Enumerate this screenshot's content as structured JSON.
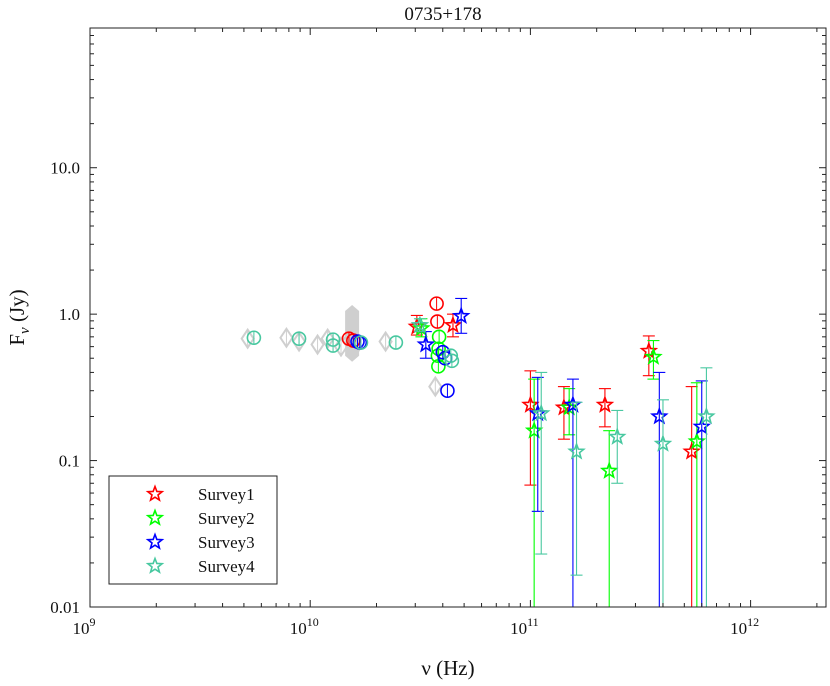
{
  "chart_data": {
    "type": "scatter",
    "title": "0735+178",
    "xlabel": "ν (Hz)",
    "ylabel": "F_ν (Jy)",
    "ylabel_main": "F",
    "ylabel_sub": "ν",
    "ylabel_unit": " (Jy)",
    "xscale": "log",
    "yscale": "log",
    "xlim": [
      1000000000.0,
      2200000000000.0
    ],
    "ylim": [
      0.01,
      90
    ],
    "x_ticks": [
      {
        "value": 1000000000.0,
        "base": "10",
        "exp": "9"
      },
      {
        "value": 10000000000.0,
        "base": "10",
        "exp": "10"
      },
      {
        "value": 100000000000.0,
        "base": "10",
        "exp": "11"
      },
      {
        "value": 1000000000000.0,
        "base": "10",
        "exp": "12"
      }
    ],
    "y_ticks": [
      {
        "value": 0.01,
        "label": "0.01"
      },
      {
        "value": 0.1,
        "label": "0.1"
      },
      {
        "value": 1,
        "label": "1.0"
      },
      {
        "value": 10,
        "label": "10.0"
      }
    ],
    "legend_position": "bottom-left",
    "legend": [
      {
        "name": "Survey1",
        "color": "#ff0000"
      },
      {
        "name": "Survey2",
        "color": "#00ff00"
      },
      {
        "name": "Survey3",
        "color": "#0000ff"
      },
      {
        "name": "Survey4",
        "color": "#48c8a0"
      }
    ],
    "archival_color": "#cfcfcf",
    "archival_bars": [
      {
        "x": 15500000000.0,
        "lo": 0.52,
        "hi": 1.05
      }
    ],
    "archival_points": [
      {
        "x": 5200000000.0,
        "y": 0.68
      },
      {
        "x": 7800000000.0,
        "y": 0.69
      },
      {
        "x": 8900000000.0,
        "y": 0.65
      },
      {
        "x": 10800000000.0,
        "y": 0.62
      },
      {
        "x": 12000000000.0,
        "y": 0.68
      },
      {
        "x": 13800000000.0,
        "y": 0.6
      },
      {
        "x": 15000000000.0,
        "y": 0.66
      },
      {
        "x": 15800000000.0,
        "y": 0.58
      },
      {
        "x": 22000000000.0,
        "y": 0.65
      },
      {
        "x": 37000000000.0,
        "y": 0.32
      }
    ],
    "circle_series": [
      {
        "name": "Survey1",
        "color": "#ff0000",
        "points": [
          {
            "x": 15000000000.0,
            "y": 0.68
          },
          {
            "x": 15700000000.0,
            "y": 0.66
          },
          {
            "x": 37500000000.0,
            "y": 1.18
          },
          {
            "x": 37800000000.0,
            "y": 0.89
          }
        ]
      },
      {
        "name": "Survey2",
        "color": "#00ff00",
        "points": [
          {
            "x": 38500000000.0,
            "y": 0.7
          },
          {
            "x": 38300000000.0,
            "y": 0.58
          },
          {
            "x": 38000000000.0,
            "y": 0.52
          },
          {
            "x": 38200000000.0,
            "y": 0.44
          }
        ]
      },
      {
        "name": "Survey3",
        "color": "#0000ff",
        "points": [
          {
            "x": 16400000000.0,
            "y": 0.65
          },
          {
            "x": 16800000000.0,
            "y": 0.64
          },
          {
            "x": 40000000000.0,
            "y": 0.55
          },
          {
            "x": 41000000000.0,
            "y": 0.5
          },
          {
            "x": 42000000000.0,
            "y": 0.3
          }
        ]
      },
      {
        "name": "Survey4",
        "color": "#48c8a0",
        "points": [
          {
            "x": 5550000000.0,
            "y": 0.69
          },
          {
            "x": 8900000000.0,
            "y": 0.68
          },
          {
            "x": 12700000000.0,
            "y": 0.67
          },
          {
            "x": 12700000000.0,
            "y": 0.61
          },
          {
            "x": 17000000000.0,
            "y": 0.64
          },
          {
            "x": 24500000000.0,
            "y": 0.64
          },
          {
            "x": 43500000000.0,
            "y": 0.52
          },
          {
            "x": 44000000000.0,
            "y": 0.48
          }
        ]
      }
    ],
    "star_series": [
      {
        "name": "Survey1",
        "color": "#ff0000",
        "points": [
          {
            "x": 30500000000.0,
            "y": 0.82,
            "lo": 0.72,
            "hi": 0.98
          },
          {
            "x": 44500000000.0,
            "y": 0.84,
            "lo": 0.7,
            "hi": 1.0
          },
          {
            "x": 100000000000.0,
            "y": 0.24,
            "lo": 0.068,
            "hi": 0.41
          },
          {
            "x": 142000000000.0,
            "y": 0.23,
            "lo": 0.14,
            "hi": 0.32
          },
          {
            "x": 218000000000.0,
            "y": 0.24,
            "lo": 0.17,
            "hi": 0.31
          },
          {
            "x": 345000000000.0,
            "y": 0.56,
            "lo": 0.38,
            "hi": 0.71
          },
          {
            "x": 540000000000.0,
            "y": 0.115,
            "lo": 0.009,
            "hi": 0.32
          }
        ]
      },
      {
        "name": "Survey2",
        "color": "#00ff00",
        "points": [
          {
            "x": 32000000000.0,
            "y": 0.8,
            "lo": 0.7,
            "hi": 0.93
          },
          {
            "x": 104000000000.0,
            "y": 0.16,
            "lo": 0.009,
            "hi": 0.36
          },
          {
            "x": 150000000000.0,
            "y": 0.23,
            "lo": 0.15,
            "hi": 0.31
          },
          {
            "x": 228000000000.0,
            "y": 0.085,
            "lo": 0.009,
            "hi": 0.16
          },
          {
            "x": 362000000000.0,
            "y": 0.51,
            "lo": 0.36,
            "hi": 0.66
          },
          {
            "x": 570000000000.0,
            "y": 0.135,
            "lo": 0.009,
            "hi": 0.34
          }
        ]
      },
      {
        "name": "Survey3",
        "color": "#0000ff",
        "points": [
          {
            "x": 33500000000.0,
            "y": 0.62,
            "lo": 0.5,
            "hi": 0.76
          },
          {
            "x": 48500000000.0,
            "y": 0.97,
            "lo": 0.74,
            "hi": 1.28
          },
          {
            "x": 108000000000.0,
            "y": 0.21,
            "lo": 0.045,
            "hi": 0.37
          },
          {
            "x": 156000000000.0,
            "y": 0.24,
            "lo": 0.009,
            "hi": 0.36
          },
          {
            "x": 385000000000.0,
            "y": 0.2,
            "lo": 0.009,
            "hi": 0.4
          },
          {
            "x": 600000000000.0,
            "y": 0.17,
            "lo": 0.009,
            "hi": 0.35
          }
        ]
      },
      {
        "name": "Survey4",
        "color": "#48c8a0",
        "points": [
          {
            "x": 31500000000.0,
            "y": 0.84,
            "lo": 0.76,
            "hi": 0.93
          },
          {
            "x": 112000000000.0,
            "y": 0.21,
            "lo": 0.023,
            "hi": 0.4
          },
          {
            "x": 162000000000.0,
            "y": 0.115,
            "lo": 0.0165,
            "hi": 0.25
          },
          {
            "x": 248000000000.0,
            "y": 0.145,
            "lo": 0.07,
            "hi": 0.22
          },
          {
            "x": 400000000000.0,
            "y": 0.13,
            "lo": 0.009,
            "hi": 0.26
          },
          {
            "x": 630000000000.0,
            "y": 0.2,
            "lo": 0.009,
            "hi": 0.43
          }
        ]
      }
    ]
  }
}
